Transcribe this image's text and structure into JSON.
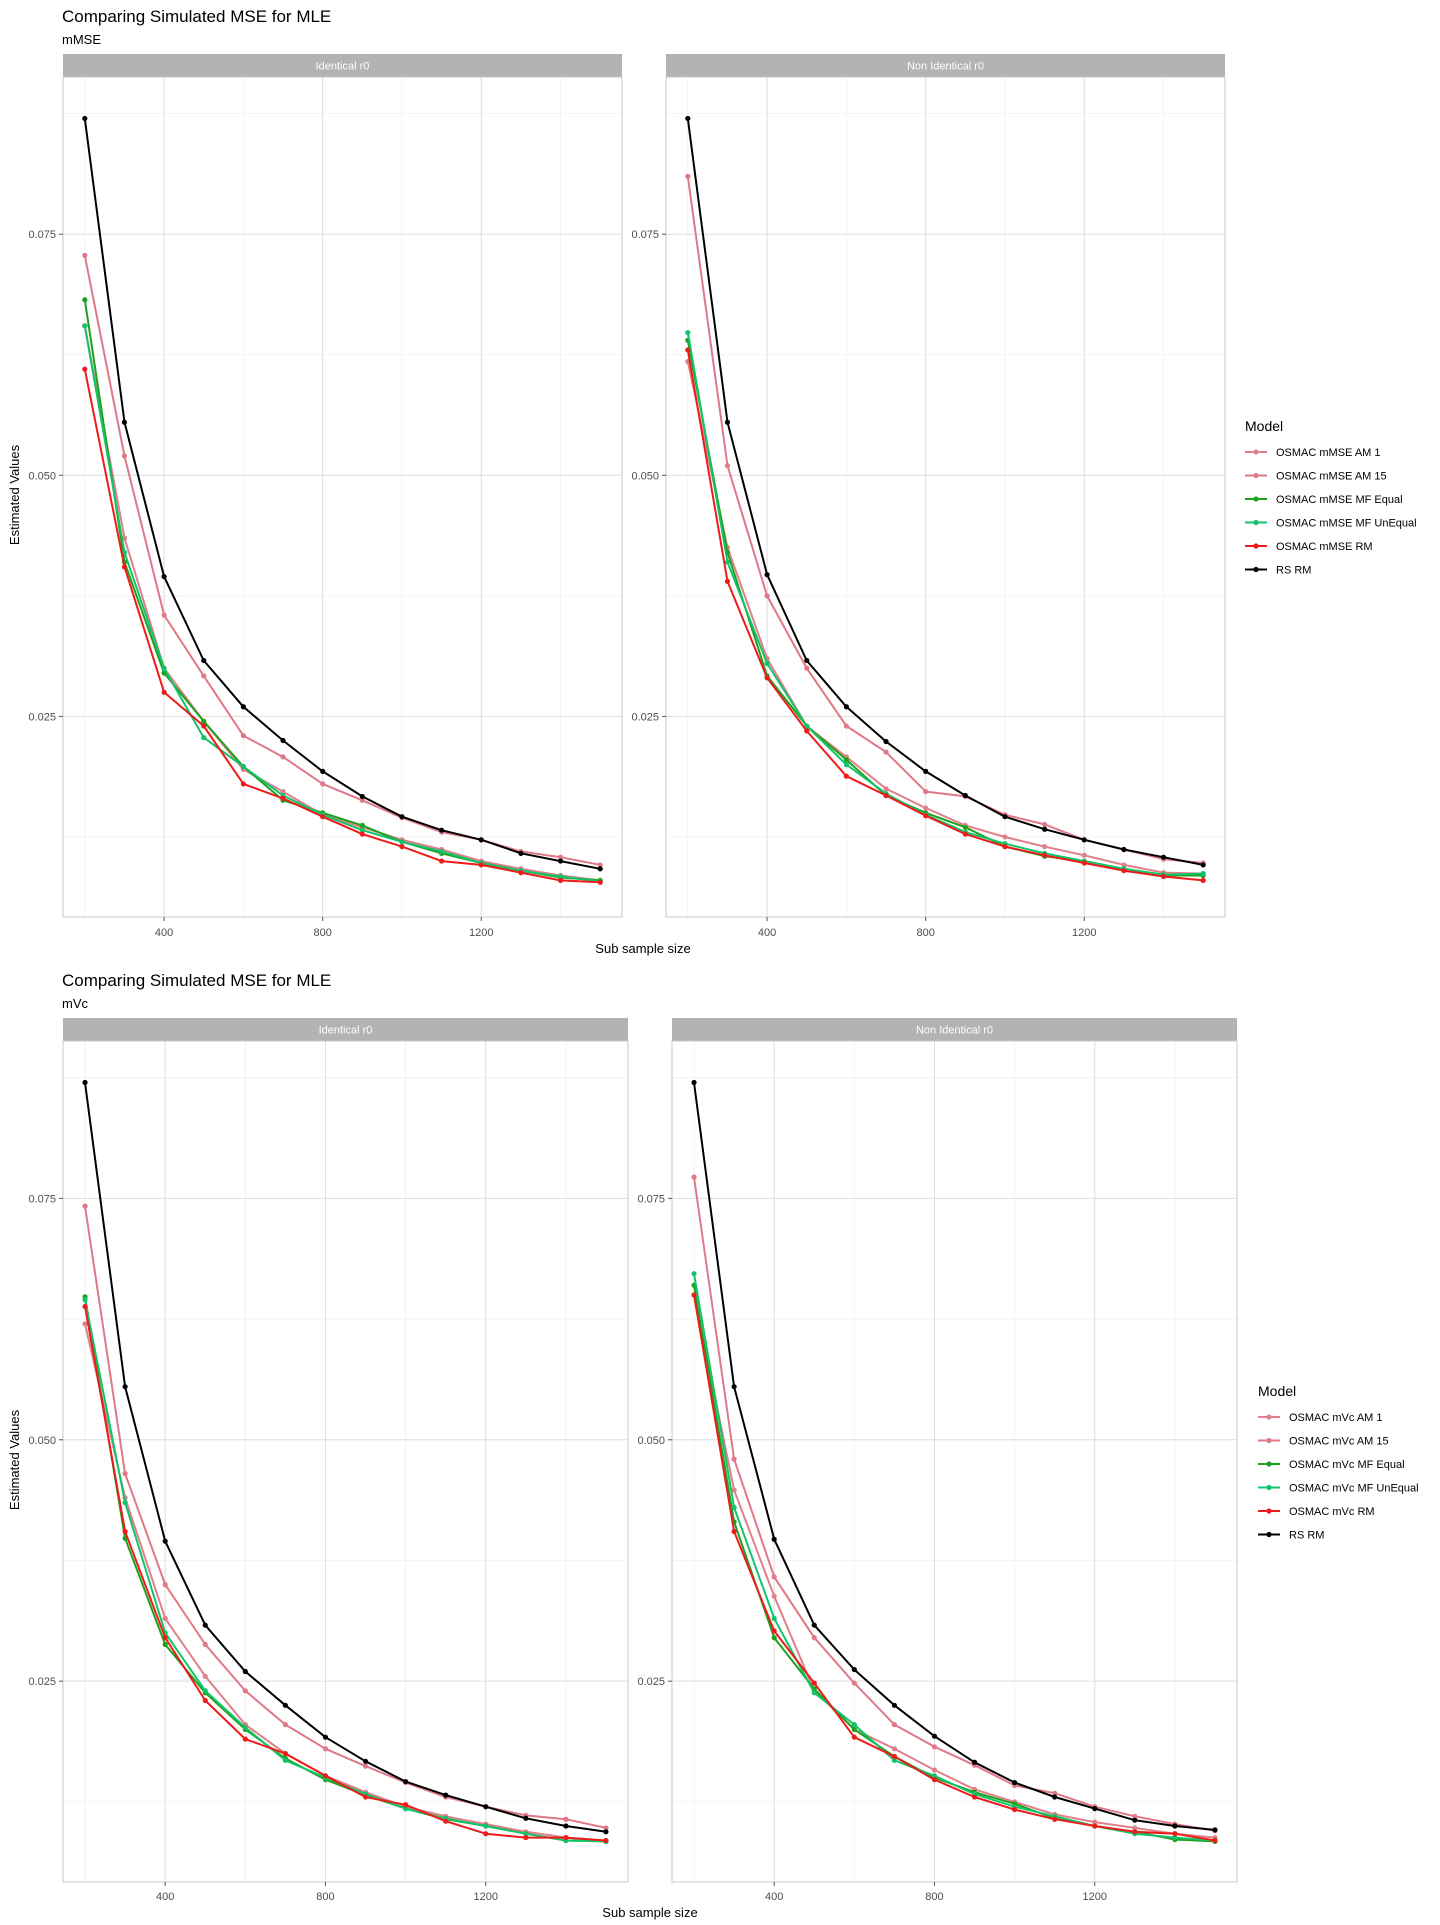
{
  "figures": [
    {
      "title": "Comparing Simulated MSE for MLE",
      "subtitle": "mMSE",
      "xlabel": "Sub sample size",
      "ylabel": "Estimated Values",
      "legend_title": "Model"
    },
    {
      "title": "Comparing Simulated MSE for MLE",
      "subtitle": "mVc",
      "xlabel": "Sub sample size",
      "ylabel": "Estimated Values",
      "legend_title": "Model"
    }
  ],
  "chart_data": [
    {
      "type": "line",
      "title": "Comparing Simulated MSE for MLE",
      "subtitle": "mMSE",
      "xlabel": "Sub sample size",
      "ylabel": "Estimated Values",
      "x": [
        200,
        300,
        400,
        500,
        600,
        700,
        800,
        900,
        1000,
        1100,
        1200,
        1300,
        1400,
        1500
      ],
      "xticks": [
        400,
        800,
        1200
      ],
      "xtick_labels": [
        "400",
        "800",
        "1200"
      ],
      "xlim": [
        145,
        1555
      ],
      "yticks": [
        0.025,
        0.05,
        0.075
      ],
      "ytick_labels": [
        "0.025",
        "0.050",
        "0.075"
      ],
      "ylim": [
        0.0042,
        0.0913
      ],
      "grid": true,
      "legend": "right",
      "legend_title": "Model",
      "facets": [
        {
          "label": "Identical r0",
          "series": [
            {
              "name": "OSMAC mMSE AM 1",
              "color": "#e0808a",
              "values": [
                0.0655,
                0.0435,
                0.03,
                0.0245,
                0.0195,
                0.0172,
                0.0148,
                0.0135,
                0.0122,
                0.0112,
                0.01,
                0.0092,
                0.0085,
                0.008
              ]
            },
            {
              "name": "OSMAC mMSE AM 15",
              "color": "#e07888",
              "values": [
                0.0728,
                0.052,
                0.0355,
                0.0292,
                0.023,
                0.0208,
                0.018,
                0.0163,
                0.0145,
                0.013,
                0.0122,
                0.011,
                0.0104,
                0.0096
              ]
            },
            {
              "name": "OSMAC mMSE MF Equal",
              "color": "#1ea21e",
              "values": [
                0.0682,
                0.041,
                0.0295,
                0.0245,
                0.0198,
                0.0163,
                0.015,
                0.0137,
                0.012,
                0.0108,
                0.0098,
                0.009,
                0.0083,
                0.008
              ]
            },
            {
              "name": "OSMAC mMSE MF UnEqual",
              "color": "#13c36b",
              "values": [
                0.0655,
                0.042,
                0.03,
                0.0228,
                0.0198,
                0.0168,
                0.0148,
                0.0132,
                0.012,
                0.011,
                0.0098,
                0.009,
                0.0084,
                0.0079
              ]
            },
            {
              "name": "OSMAC mMSE RM",
              "color": "#ee1b1b",
              "values": [
                0.061,
                0.0405,
                0.0275,
                0.024,
                0.018,
                0.0165,
                0.0146,
                0.0128,
                0.0115,
                0.01,
                0.0096,
                0.0088,
                0.008,
                0.0078
              ]
            },
            {
              "name": "RS RM",
              "color": "#000000",
              "values": [
                0.087,
                0.0555,
                0.0395,
                0.0308,
                0.026,
                0.0225,
                0.0193,
                0.0167,
                0.0146,
                0.0132,
                0.0122,
                0.0108,
                0.01,
                0.0092
              ]
            }
          ]
        },
        {
          "label": "Non Identical r0",
          "series": [
            {
              "name": "OSMAC mMSE AM 1",
              "color": "#e0808a",
              "values": [
                0.0618,
                0.0425,
                0.031,
                0.024,
                0.0208,
                0.0175,
                0.0155,
                0.0137,
                0.0125,
                0.0115,
                0.0106,
                0.0096,
                0.0088,
                0.0087
              ]
            },
            {
              "name": "OSMAC mMSE AM 15",
              "color": "#e07888",
              "values": [
                0.081,
                0.051,
                0.0375,
                0.03,
                0.024,
                0.0213,
                0.0172,
                0.0167,
                0.0148,
                0.0138,
                0.0122,
                0.0112,
                0.0102,
                0.0098
              ]
            },
            {
              "name": "OSMAC mMSE MF Equal",
              "color": "#1ea21e",
              "values": [
                0.064,
                0.042,
                0.0292,
                0.024,
                0.0205,
                0.0168,
                0.015,
                0.0135,
                0.0115,
                0.0105,
                0.01,
                0.0092,
                0.0085,
                0.0085
              ]
            },
            {
              "name": "OSMAC mMSE MF UnEqual",
              "color": "#13c36b",
              "values": [
                0.0648,
                0.041,
                0.0305,
                0.024,
                0.02,
                0.017,
                0.0148,
                0.013,
                0.0118,
                0.0108,
                0.01,
                0.0092,
                0.0086,
                0.0087
              ]
            },
            {
              "name": "OSMAC mMSE RM",
              "color": "#ee1b1b",
              "values": [
                0.063,
                0.039,
                0.029,
                0.0235,
                0.0188,
                0.0168,
                0.0147,
                0.0128,
                0.0115,
                0.0106,
                0.0098,
                0.009,
                0.0084,
                0.008
              ]
            },
            {
              "name": "RS RM",
              "color": "#000000",
              "values": [
                0.087,
                0.0555,
                0.0397,
                0.0308,
                0.026,
                0.0224,
                0.0193,
                0.0168,
                0.0146,
                0.0133,
                0.0122,
                0.0112,
                0.0104,
                0.0096
              ]
            }
          ]
        }
      ]
    },
    {
      "type": "line",
      "title": "Comparing Simulated MSE for MLE",
      "subtitle": "mVc",
      "xlabel": "Sub sample size",
      "ylabel": "Estimated Values",
      "x": [
        200,
        300,
        400,
        500,
        600,
        700,
        800,
        900,
        1000,
        1100,
        1200,
        1300,
        1400,
        1500
      ],
      "xticks": [
        400,
        800,
        1200
      ],
      "xtick_labels": [
        "400",
        "800",
        "1200"
      ],
      "xlim": [
        145,
        1555
      ],
      "yticks": [
        0.025,
        0.05,
        0.075
      ],
      "ytick_labels": [
        "0.025",
        "0.050",
        "0.075"
      ],
      "ylim": [
        0.0042,
        0.0913
      ],
      "grid": true,
      "legend": "right",
      "legend_title": "Model",
      "facets": [
        {
          "label": "Identical r0",
          "series": [
            {
              "name": "OSMAC mVc AM 1",
              "color": "#e0808a",
              "values": [
                0.062,
                0.044,
                0.0315,
                0.0255,
                0.0205,
                0.0175,
                0.0152,
                0.0135,
                0.012,
                0.011,
                0.0102,
                0.0094,
                0.0088,
                0.0084
              ]
            },
            {
              "name": "OSMAC mVc AM 15",
              "color": "#e07888",
              "values": [
                0.0742,
                0.0465,
                0.035,
                0.0288,
                0.024,
                0.0205,
                0.018,
                0.0162,
                0.0145,
                0.013,
                0.012,
                0.0111,
                0.0107,
                0.0098
              ]
            },
            {
              "name": "OSMAC mVc MF Equal",
              "color": "#1ea21e",
              "values": [
                0.0648,
                0.0398,
                0.0288,
                0.0238,
                0.02,
                0.017,
                0.0148,
                0.0132,
                0.0118,
                0.0107,
                0.01,
                0.0092,
                0.0085,
                0.0084
              ]
            },
            {
              "name": "OSMAC mVc MF UnEqual",
              "color": "#13c36b",
              "values": [
                0.0645,
                0.0435,
                0.03,
                0.024,
                0.0202,
                0.0168,
                0.015,
                0.0133,
                0.0118,
                0.0108,
                0.01,
                0.0092,
                0.0085,
                0.0084
              ]
            },
            {
              "name": "OSMAC mVc RM",
              "color": "#ee1b1b",
              "values": [
                0.0638,
                0.0405,
                0.0295,
                0.023,
                0.019,
                0.0175,
                0.0152,
                0.013,
                0.0122,
                0.0105,
                0.0092,
                0.0088,
                0.0088,
                0.0085
              ]
            },
            {
              "name": "RS RM",
              "color": "#000000",
              "values": [
                0.087,
                0.0555,
                0.0395,
                0.0308,
                0.026,
                0.0225,
                0.0192,
                0.0167,
                0.0146,
                0.0132,
                0.012,
                0.0108,
                0.01,
                0.0094
              ]
            }
          ]
        },
        {
          "label": "Non Identical r0",
          "series": [
            {
              "name": "OSMAC mVc AM 1",
              "color": "#e0808a",
              "values": [
                0.065,
                0.0448,
                0.0338,
                0.024,
                0.02,
                0.018,
                0.0158,
                0.0138,
                0.0125,
                0.0112,
                0.0104,
                0.0098,
                0.0092,
                0.0088
              ]
            },
            {
              "name": "OSMAC mVc AM 15",
              "color": "#e07888",
              "values": [
                0.0772,
                0.048,
                0.0358,
                0.0295,
                0.0248,
                0.0205,
                0.0182,
                0.0163,
                0.0142,
                0.0134,
                0.012,
                0.011,
                0.0102,
                0.0095
              ]
            },
            {
              "name": "OSMAC mVc MF Equal",
              "color": "#1ea21e",
              "values": [
                0.066,
                0.0415,
                0.0295,
                0.0242,
                0.02,
                0.0172,
                0.015,
                0.0135,
                0.0123,
                0.0108,
                0.01,
                0.0094,
                0.0086,
                0.0084
              ]
            },
            {
              "name": "OSMAC mVc MF UnEqual",
              "color": "#13c36b",
              "values": [
                0.0672,
                0.043,
                0.0315,
                0.0238,
                0.0205,
                0.0168,
                0.0152,
                0.0133,
                0.012,
                0.011,
                0.01,
                0.0092,
                0.0088,
                0.0085
              ]
            },
            {
              "name": "OSMAC mVc RM",
              "color": "#ee1b1b",
              "values": [
                0.065,
                0.0405,
                0.0302,
                0.0248,
                0.0192,
                0.0172,
                0.0148,
                0.013,
                0.0117,
                0.0107,
                0.01,
                0.0094,
                0.0092,
                0.0085
              ]
            },
            {
              "name": "RS RM",
              "color": "#000000",
              "values": [
                0.087,
                0.0555,
                0.0397,
                0.0308,
                0.0262,
                0.0225,
                0.0193,
                0.0166,
                0.0145,
                0.013,
                0.0118,
                0.0106,
                0.01,
                0.0096
              ]
            }
          ]
        }
      ]
    }
  ]
}
